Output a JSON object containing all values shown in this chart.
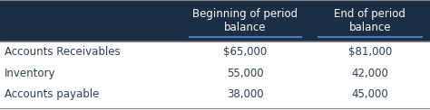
{
  "header_bg": "#1a2e44",
  "header_text_color": "#ffffff",
  "body_bg": "#ffffff",
  "body_text_color": "#2c3e50",
  "border_color": "#888888",
  "underline_color": "#4a7cba",
  "col2_header": "Beginning of period\nbalance",
  "col3_header": "End of period\nbalance",
  "rows": [
    [
      "Accounts Receivables",
      "$65,000",
      "$81,000"
    ],
    [
      "Inventory",
      "55,000",
      "42,000"
    ],
    [
      "Accounts payable",
      "38,000",
      "45,000"
    ]
  ],
  "figsize": [
    4.74,
    1.22
  ],
  "dpi": 100,
  "header_fontsize": 8.5,
  "body_fontsize": 8.5
}
